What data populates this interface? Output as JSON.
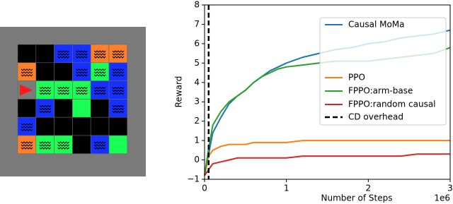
{
  "chart_data": {
    "type": "line",
    "x": [
      0,
      0.05,
      0.1,
      0.2,
      0.3,
      0.4,
      0.5,
      0.6,
      0.7,
      0.8,
      0.9,
      1.0,
      1.2,
      1.4,
      1.6,
      1.8,
      2.0,
      2.2,
      2.4,
      2.6,
      2.8,
      3.0
    ],
    "series": [
      {
        "name": "Causal MoMa",
        "color": "#1f77b4",
        "values": [
          -0.8,
          0.3,
          1.4,
          2.2,
          2.9,
          3.3,
          3.6,
          4.0,
          4.3,
          4.6,
          4.8,
          5.0,
          5.3,
          5.5,
          5.7,
          5.8,
          6.0,
          6.1,
          6.3,
          6.4,
          6.5,
          6.7
        ]
      },
      {
        "name": "PPO",
        "color": "#ff7f0e",
        "values": [
          -0.8,
          0.2,
          0.5,
          0.7,
          0.8,
          0.8,
          0.8,
          0.9,
          0.9,
          0.9,
          0.9,
          0.9,
          1.0,
          1.0,
          1.0,
          1.0,
          1.0,
          1.0,
          1.0,
          1.0,
          1.0,
          1.0
        ]
      },
      {
        "name": "FPPO:arm-base",
        "color": "#2ca02c",
        "values": [
          -0.8,
          0.6,
          1.8,
          2.5,
          3.0,
          3.3,
          3.6,
          4.0,
          4.3,
          4.5,
          4.7,
          4.8,
          4.9,
          5.0,
          5.1,
          5.1,
          5.1,
          5.2,
          5.3,
          5.4,
          5.5,
          5.8
        ]
      },
      {
        "name": "FPPO:random causal",
        "color": "#d62728",
        "values": [
          -0.8,
          -0.5,
          -0.2,
          -0.1,
          0.0,
          0.1,
          0.1,
          0.1,
          0.1,
          0.1,
          0.1,
          0.1,
          0.2,
          0.2,
          0.2,
          0.2,
          0.2,
          0.2,
          0.2,
          0.3,
          0.3,
          0.3
        ]
      }
    ],
    "vline": {
      "name": "CD overhead",
      "x": 0.05,
      "color": "#000000"
    },
    "xlabel": "Number of Steps",
    "ylabel": "Reward",
    "x_offset_label": "1e6",
    "xlim": [
      0,
      3
    ],
    "xticks": [
      0,
      1,
      2,
      3
    ],
    "ylim": [
      -1,
      8
    ],
    "yticks": [
      {
        "value": -1,
        "label": "−1"
      },
      0,
      1,
      2,
      3,
      4,
      5,
      6,
      7,
      8
    ],
    "legend": "upper right"
  }
}
